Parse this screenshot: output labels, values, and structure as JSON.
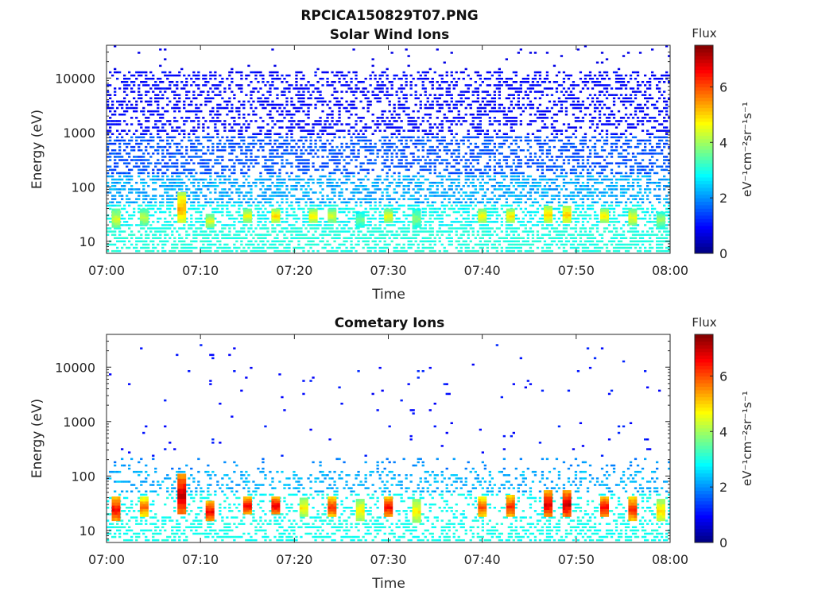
{
  "figure_title": "RPCICA150829T07.PNG",
  "colors": {
    "axis": "#262626",
    "background": "#ffffff",
    "text": "#222222"
  },
  "chart_data": [
    {
      "type": "heatmap",
      "title": "Solar Wind Ions",
      "xlabel": "Time",
      "ylabel": "Energy (eV)",
      "x_range": [
        "07:00",
        "08:00"
      ],
      "x_ticks": [
        "07:00",
        "07:10",
        "07:20",
        "07:30",
        "07:40",
        "07:50",
        "08:00"
      ],
      "y_scale": "log",
      "y_range": [
        6,
        40000
      ],
      "y_ticks": [
        10,
        100,
        1000,
        10000
      ],
      "y_tick_labels": [
        "10",
        "100",
        "1000",
        "10000"
      ],
      "colorbar": {
        "title": "Flux",
        "label": "eV⁻¹cm⁻²sr⁻¹s⁻¹",
        "range": [
          0,
          7.5
        ],
        "ticks": [
          0,
          2,
          4,
          6
        ],
        "colormap": "jet"
      },
      "bursts": [
        {
          "t": "07:01",
          "e_lo": 18,
          "e_hi": 40,
          "peak": 4.6
        },
        {
          "t": "07:04",
          "e_lo": 20,
          "e_hi": 40,
          "peak": 4.4
        },
        {
          "t": "07:08",
          "e_lo": 22,
          "e_hi": 80,
          "peak": 5.5
        },
        {
          "t": "07:11",
          "e_lo": 18,
          "e_hi": 32,
          "peak": 4.7
        },
        {
          "t": "07:15",
          "e_lo": 22,
          "e_hi": 40,
          "peak": 4.8
        },
        {
          "t": "07:18",
          "e_lo": 22,
          "e_hi": 40,
          "peak": 5.2
        },
        {
          "t": "07:22",
          "e_lo": 22,
          "e_hi": 40,
          "peak": 5.0
        },
        {
          "t": "07:24",
          "e_lo": 22,
          "e_hi": 40,
          "peak": 4.6
        },
        {
          "t": "07:27",
          "e_lo": 18,
          "e_hi": 35,
          "peak": 3.8
        },
        {
          "t": "07:30",
          "e_lo": 22,
          "e_hi": 40,
          "peak": 4.8
        },
        {
          "t": "07:33",
          "e_lo": 18,
          "e_hi": 40,
          "peak": 4.0
        },
        {
          "t": "07:40",
          "e_lo": 22,
          "e_hi": 40,
          "peak": 4.9
        },
        {
          "t": "07:43",
          "e_lo": 22,
          "e_hi": 40,
          "peak": 5.0
        },
        {
          "t": "07:47",
          "e_lo": 22,
          "e_hi": 45,
          "peak": 5.2
        },
        {
          "t": "07:49",
          "e_lo": 22,
          "e_hi": 45,
          "peak": 5.3
        },
        {
          "t": "07:53",
          "e_lo": 22,
          "e_hi": 40,
          "peak": 5.0
        },
        {
          "t": "07:56",
          "e_lo": 20,
          "e_hi": 40,
          "peak": 4.8
        },
        {
          "t": "07:59",
          "e_lo": 18,
          "e_hi": 35,
          "peak": 4.2
        }
      ]
    },
    {
      "type": "heatmap",
      "title": "Cometary Ions",
      "xlabel": "Time",
      "ylabel": "Energy (eV)",
      "x_range": [
        "07:00",
        "08:00"
      ],
      "x_ticks": [
        "07:00",
        "07:10",
        "07:20",
        "07:30",
        "07:40",
        "07:50",
        "08:00"
      ],
      "y_scale": "log",
      "y_range": [
        6,
        40000
      ],
      "y_ticks": [
        10,
        100,
        1000,
        10000
      ],
      "y_tick_labels": [
        "10",
        "100",
        "1000",
        "10000"
      ],
      "colorbar": {
        "title": "Flux",
        "label": "eV⁻¹cm⁻²sr⁻¹s⁻¹",
        "range": [
          0,
          7.5
        ],
        "ticks": [
          0,
          2,
          4,
          6
        ],
        "colormap": "jet"
      },
      "bursts": [
        {
          "t": "07:01",
          "e_lo": 15,
          "e_hi": 42,
          "peak": 6.8
        },
        {
          "t": "07:04",
          "e_lo": 18,
          "e_hi": 42,
          "peak": 6.0
        },
        {
          "t": "07:08",
          "e_lo": 20,
          "e_hi": 110,
          "peak": 7.3
        },
        {
          "t": "07:11",
          "e_lo": 15,
          "e_hi": 35,
          "peak": 6.8
        },
        {
          "t": "07:15",
          "e_lo": 20,
          "e_hi": 42,
          "peak": 6.8
        },
        {
          "t": "07:18",
          "e_lo": 20,
          "e_hi": 42,
          "peak": 7.0
        },
        {
          "t": "07:21",
          "e_lo": 18,
          "e_hi": 40,
          "peak": 5.0
        },
        {
          "t": "07:24",
          "e_lo": 18,
          "e_hi": 42,
          "peak": 6.5
        },
        {
          "t": "07:27",
          "e_lo": 15,
          "e_hi": 38,
          "peak": 5.0
        },
        {
          "t": "07:30",
          "e_lo": 18,
          "e_hi": 42,
          "peak": 6.8
        },
        {
          "t": "07:33",
          "e_lo": 14,
          "e_hi": 38,
          "peak": 5.0
        },
        {
          "t": "07:40",
          "e_lo": 18,
          "e_hi": 42,
          "peak": 6.2
        },
        {
          "t": "07:43",
          "e_lo": 18,
          "e_hi": 45,
          "peak": 6.5
        },
        {
          "t": "07:47",
          "e_lo": 18,
          "e_hi": 55,
          "peak": 7.0
        },
        {
          "t": "07:49",
          "e_lo": 18,
          "e_hi": 55,
          "peak": 7.2
        },
        {
          "t": "07:53",
          "e_lo": 18,
          "e_hi": 42,
          "peak": 6.8
        },
        {
          "t": "07:56",
          "e_lo": 15,
          "e_hi": 42,
          "peak": 6.5
        },
        {
          "t": "07:59",
          "e_lo": 15,
          "e_hi": 38,
          "peak": 5.2
        }
      ]
    }
  ]
}
